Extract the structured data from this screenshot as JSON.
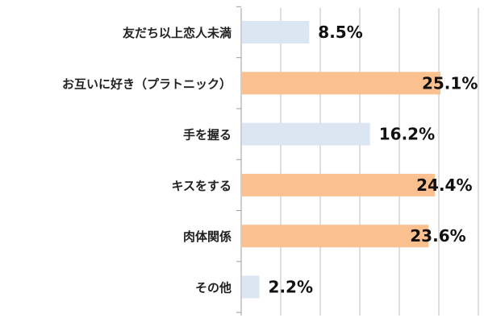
{
  "chart_data": {
    "type": "bar",
    "orientation": "horizontal",
    "categories": [
      "友だち以上恋人未満",
      "お互いに好き（プラトニック）",
      "手を握る",
      "キスをする",
      "肉体関係",
      "その他"
    ],
    "values": [
      8.5,
      25.1,
      16.2,
      24.4,
      23.6,
      2.2
    ],
    "value_labels": [
      "8.5%",
      "25.1%",
      "16.2%",
      "24.4%",
      "23.6%",
      "2.2%"
    ],
    "bar_colors": [
      "#dce6f2",
      "#fac090",
      "#dce6f2",
      "#fac090",
      "#fac090",
      "#dce6f2"
    ],
    "xlim": [
      0,
      30
    ],
    "grid": true,
    "title": "",
    "xlabel": "",
    "ylabel": ""
  }
}
